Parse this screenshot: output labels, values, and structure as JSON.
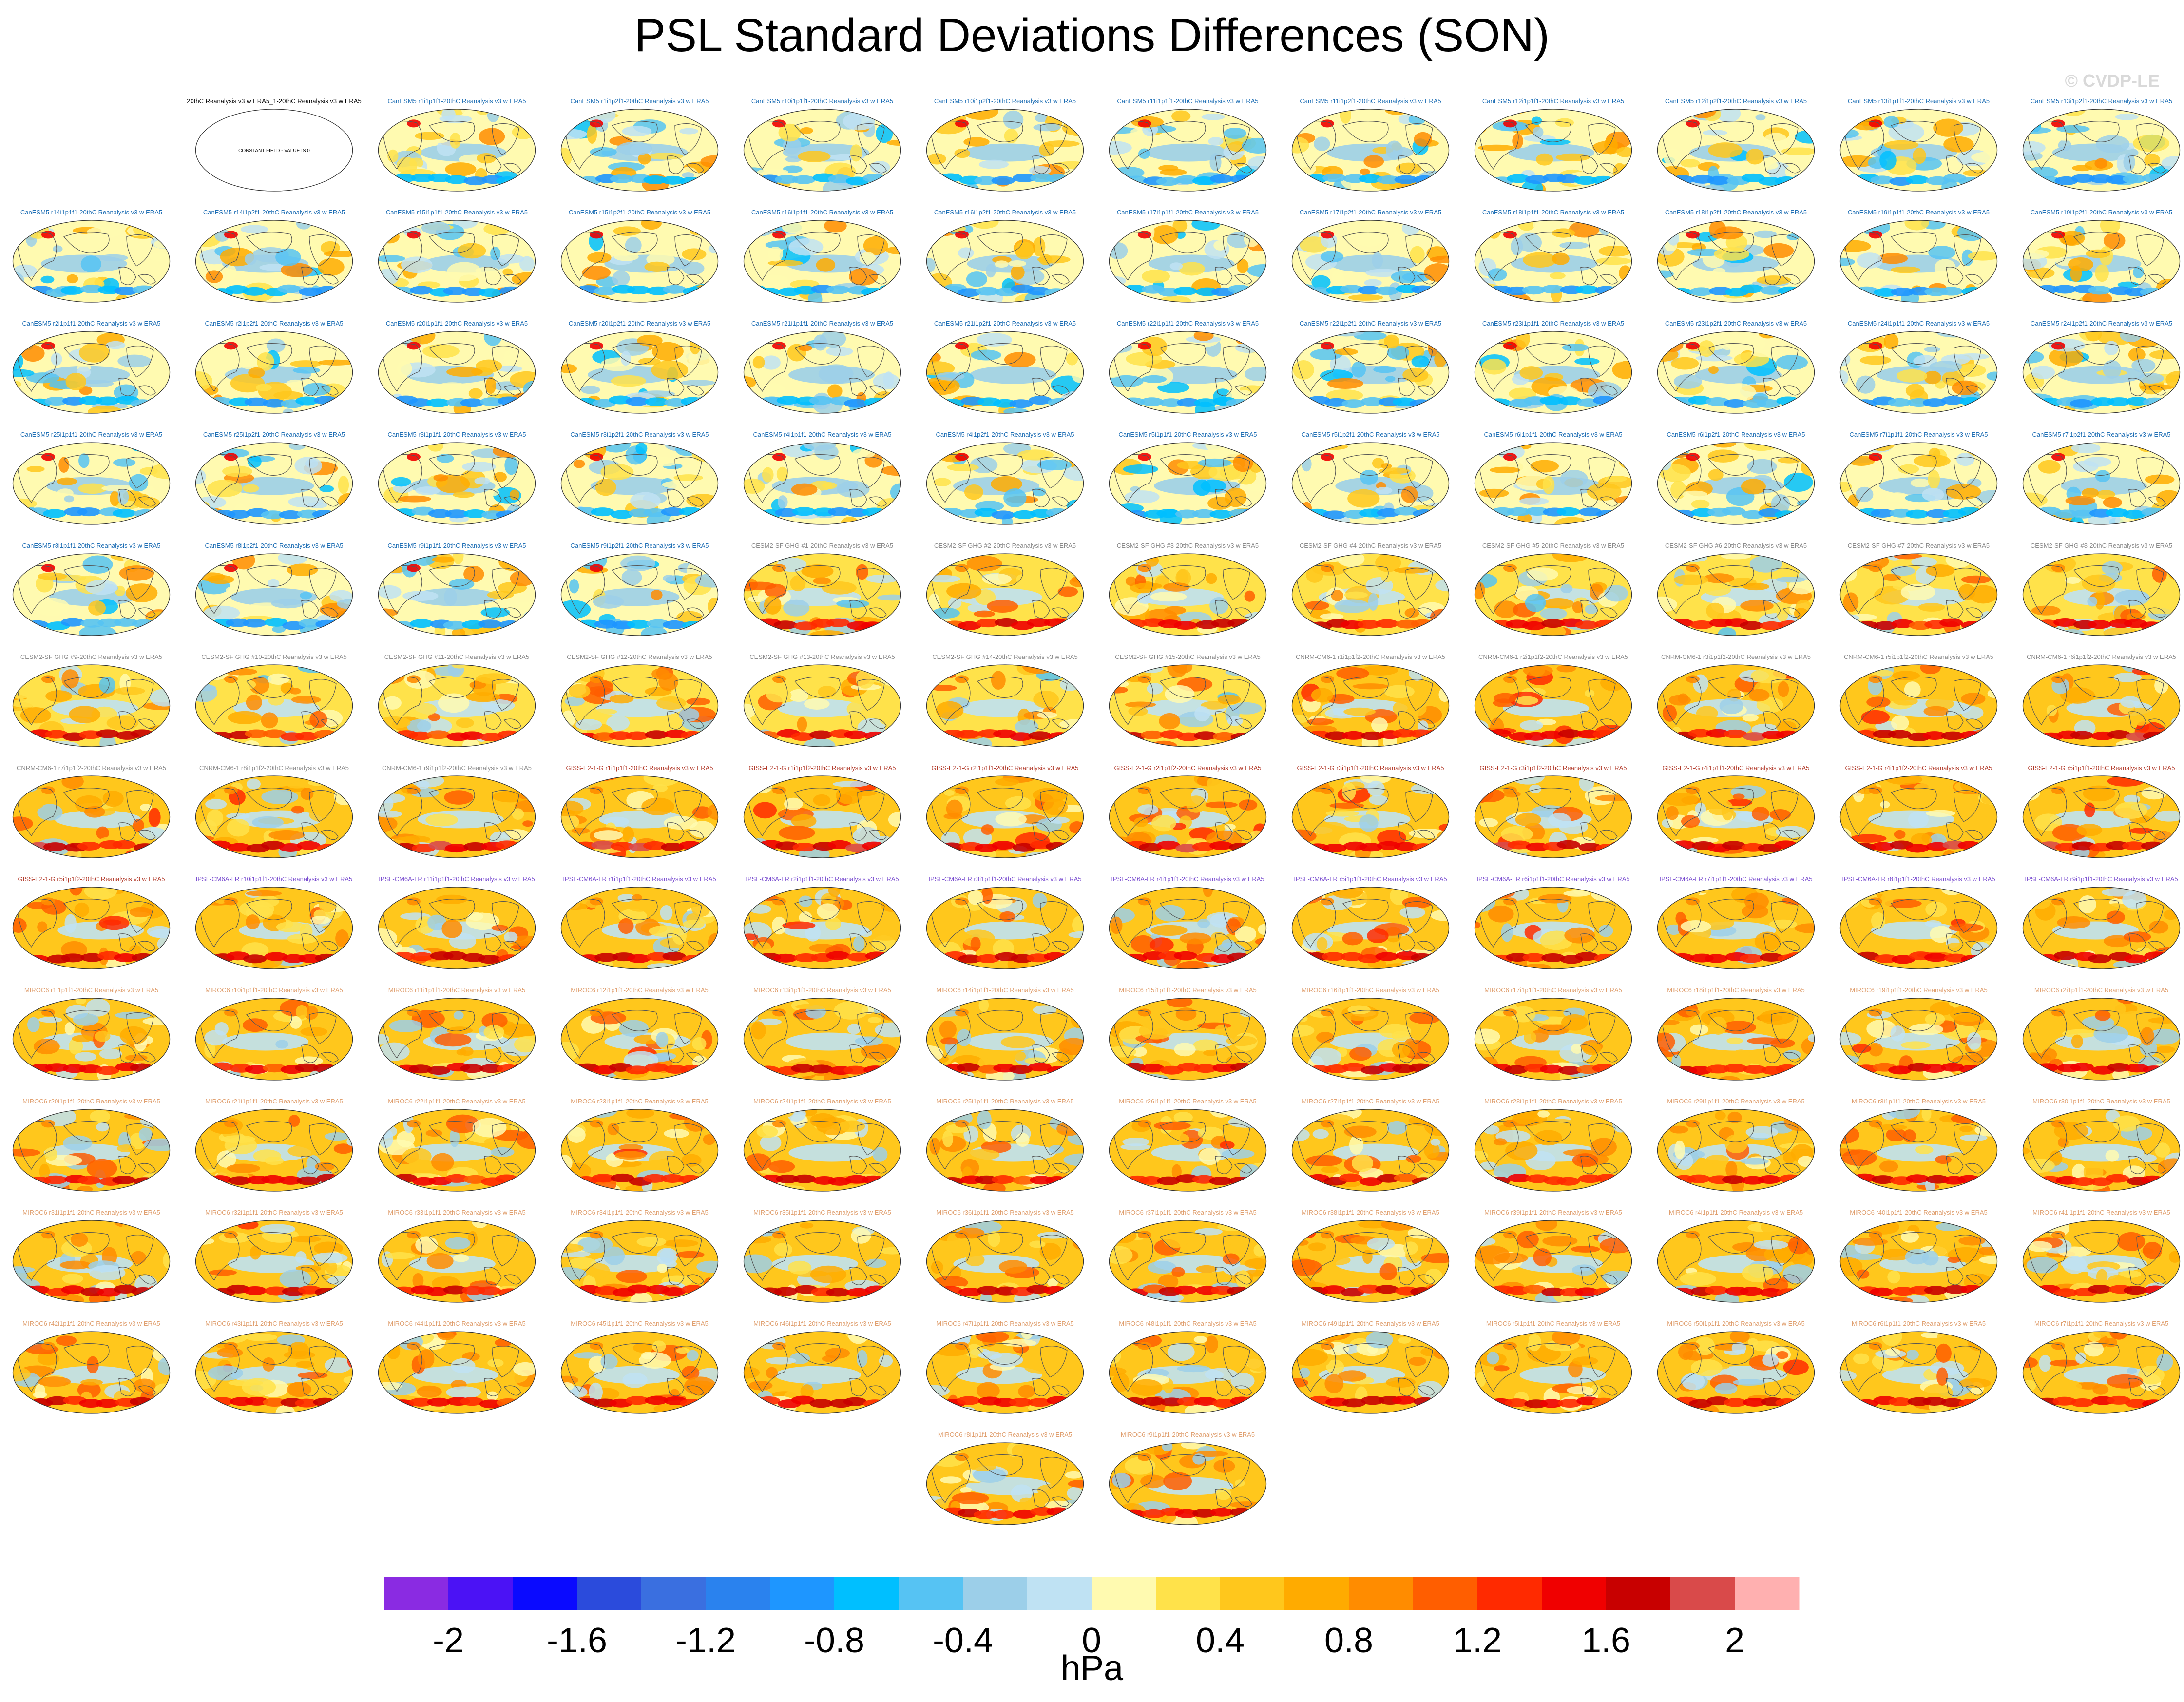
{
  "title": "PSL Standard Deviations Differences (SON)",
  "watermark": "© CVDP-LE",
  "colors": {
    "canesm": "#1f6fb5",
    "cesm": "#8a8a8a",
    "cnrm": "#8a8a8a",
    "giss": "#b23a2a",
    "ipsl": "#7b4fd0",
    "miroc": "#e0a070",
    "ocean_base": "#f5f0c0",
    "land_line": "#555555"
  },
  "chart_data": {
    "type": "heatmap",
    "title": "PSL Standard Deviations Differences (SON)",
    "units": "hPa",
    "colorbar": {
      "levels": [
        -2.2,
        -2.0,
        -1.8,
        -1.6,
        -1.4,
        -1.2,
        -1.0,
        -0.8,
        -0.6,
        -0.4,
        -0.2,
        0,
        0.2,
        0.4,
        0.6,
        0.8,
        1.0,
        1.2,
        1.4,
        1.6,
        1.8,
        2.0,
        2.2
      ],
      "colors": [
        "#8a2be2",
        "#4b12f5",
        "#0a0aff",
        "#2b4bdc",
        "#3a6fe0",
        "#2a82ee",
        "#1e96ff",
        "#00bfff",
        "#56c3f3",
        "#9ccfe9",
        "#bfe2f3",
        "#fffab0",
        "#ffe24a",
        "#ffc71c",
        "#ffab00",
        "#ff8c00",
        "#ff5e00",
        "#ff2a00",
        "#f00000",
        "#c80000",
        "#d94a4a",
        "#ffb0b0"
      ],
      "tick_values": [
        -2,
        -1.6,
        -1.2,
        -0.8,
        -0.4,
        0,
        0.4,
        0.8,
        1.2,
        1.6,
        2
      ],
      "tick_labels": [
        "-2",
        "-1.6",
        "-1.2",
        "-0.8",
        "-0.4",
        "0",
        "0.4",
        "0.8",
        "1.2",
        "1.6",
        "2"
      ]
    },
    "panels": [
      {
        "label": "20thC Reanalysis v3 w ERA5_1-20thC Reanalysis v3 w ERA5",
        "group": "obs",
        "note": "CONSTANT FIELD - VALUE IS 0"
      },
      {
        "label": "CanESM5 r1i1p1f1-20thC Reanalysis v3 w ERA5",
        "group": "canesm"
      },
      {
        "label": "CanESM5 r1i1p2f1-20thC Reanalysis v3 w ERA5",
        "group": "canesm"
      },
      {
        "label": "CanESM5 r10i1p1f1-20thC Reanalysis v3 w ERA5",
        "group": "canesm"
      },
      {
        "label": "CanESM5 r10i1p2f1-20thC Reanalysis v3 w ERA5",
        "group": "canesm"
      },
      {
        "label": "CanESM5 r11i1p1f1-20thC Reanalysis v3 w ERA5",
        "group": "canesm"
      },
      {
        "label": "CanESM5 r11i1p2f1-20thC Reanalysis v3 w ERA5",
        "group": "canesm"
      },
      {
        "label": "CanESM5 r12i1p1f1-20thC Reanalysis v3 w ERA5",
        "group": "canesm"
      },
      {
        "label": "CanESM5 r12i1p2f1-20thC Reanalysis v3 w ERA5",
        "group": "canesm"
      },
      {
        "label": "CanESM5 r13i1p1f1-20thC Reanalysis v3 w ERA5",
        "group": "canesm"
      },
      {
        "label": "CanESM5 r13i1p2f1-20thC Reanalysis v3 w ERA5",
        "group": "canesm"
      },
      {
        "label": "CanESM5 r14i1p1f1-20thC Reanalysis v3 w ERA5",
        "group": "canesm"
      },
      {
        "label": "CanESM5 r14i1p2f1-20thC Reanalysis v3 w ERA5",
        "group": "canesm"
      },
      {
        "label": "CanESM5 r15i1p1f1-20thC Reanalysis v3 w ERA5",
        "group": "canesm"
      },
      {
        "label": "CanESM5 r15i1p2f1-20thC Reanalysis v3 w ERA5",
        "group": "canesm"
      },
      {
        "label": "CanESM5 r16i1p1f1-20thC Reanalysis v3 w ERA5",
        "group": "canesm"
      },
      {
        "label": "CanESM5 r16i1p2f1-20thC Reanalysis v3 w ERA5",
        "group": "canesm"
      },
      {
        "label": "CanESM5 r17i1p1f1-20thC Reanalysis v3 w ERA5",
        "group": "canesm"
      },
      {
        "label": "CanESM5 r17i1p2f1-20thC Reanalysis v3 w ERA5",
        "group": "canesm"
      },
      {
        "label": "CanESM5 r18i1p1f1-20thC Reanalysis v3 w ERA5",
        "group": "canesm"
      },
      {
        "label": "CanESM5 r18i1p2f1-20thC Reanalysis v3 w ERA5",
        "group": "canesm"
      },
      {
        "label": "CanESM5 r19i1p1f1-20thC Reanalysis v3 w ERA5",
        "group": "canesm"
      },
      {
        "label": "CanESM5 r19i1p2f1-20thC Reanalysis v3 w ERA5",
        "group": "canesm"
      },
      {
        "label": "CanESM5 r2i1p1f1-20thC Reanalysis v3 w ERA5",
        "group": "canesm"
      },
      {
        "label": "CanESM5 r2i1p2f1-20thC Reanalysis v3 w ERA5",
        "group": "canesm"
      },
      {
        "label": "CanESM5 r20i1p1f1-20thC Reanalysis v3 w ERA5",
        "group": "canesm"
      },
      {
        "label": "CanESM5 r20i1p2f1-20thC Reanalysis v3 w ERA5",
        "group": "canesm"
      },
      {
        "label": "CanESM5 r21i1p1f1-20thC Reanalysis v3 w ERA5",
        "group": "canesm"
      },
      {
        "label": "CanESM5 r21i1p2f1-20thC Reanalysis v3 w ERA5",
        "group": "canesm"
      },
      {
        "label": "CanESM5 r22i1p1f1-20thC Reanalysis v3 w ERA5",
        "group": "canesm"
      },
      {
        "label": "CanESM5 r22i1p2f1-20thC Reanalysis v3 w ERA5",
        "group": "canesm"
      },
      {
        "label": "CanESM5 r23i1p1f1-20thC Reanalysis v3 w ERA5",
        "group": "canesm"
      },
      {
        "label": "CanESM5 r23i1p2f1-20thC Reanalysis v3 w ERA5",
        "group": "canesm"
      },
      {
        "label": "CanESM5 r24i1p1f1-20thC Reanalysis v3 w ERA5",
        "group": "canesm"
      },
      {
        "label": "CanESM5 r24i1p2f1-20thC Reanalysis v3 w ERA5",
        "group": "canesm"
      },
      {
        "label": "CanESM5 r25i1p1f1-20thC Reanalysis v3 w ERA5",
        "group": "canesm"
      },
      {
        "label": "CanESM5 r25i1p2f1-20thC Reanalysis v3 w ERA5",
        "group": "canesm"
      },
      {
        "label": "CanESM5 r3i1p1f1-20thC Reanalysis v3 w ERA5",
        "group": "canesm"
      },
      {
        "label": "CanESM5 r3i1p2f1-20thC Reanalysis v3 w ERA5",
        "group": "canesm"
      },
      {
        "label": "CanESM5 r4i1p1f1-20thC Reanalysis v3 w ERA5",
        "group": "canesm"
      },
      {
        "label": "CanESM5 r4i1p2f1-20thC Reanalysis v3 w ERA5",
        "group": "canesm"
      },
      {
        "label": "CanESM5 r5i1p1f1-20thC Reanalysis v3 w ERA5",
        "group": "canesm"
      },
      {
        "label": "CanESM5 r5i1p2f1-20thC Reanalysis v3 w ERA5",
        "group": "canesm"
      },
      {
        "label": "CanESM5 r6i1p1f1-20thC Reanalysis v3 w ERA5",
        "group": "canesm"
      },
      {
        "label": "CanESM5 r6i1p2f1-20thC Reanalysis v3 w ERA5",
        "group": "canesm"
      },
      {
        "label": "CanESM5 r7i1p1f1-20thC Reanalysis v3 w ERA5",
        "group": "canesm"
      },
      {
        "label": "CanESM5 r7i1p2f1-20thC Reanalysis v3 w ERA5",
        "group": "canesm"
      },
      {
        "label": "CanESM5 r8i1p1f1-20thC Reanalysis v3 w ERA5",
        "group": "canesm"
      },
      {
        "label": "CanESM5 r8i1p2f1-20thC Reanalysis v3 w ERA5",
        "group": "canesm"
      },
      {
        "label": "CanESM5 r9i1p1f1-20thC Reanalysis v3 w ERA5",
        "group": "canesm"
      },
      {
        "label": "CanESM5 r9i1p2f1-20thC Reanalysis v3 w ERA5",
        "group": "canesm"
      },
      {
        "label": "CESM2-SF GHG #1-20thC Reanalysis v3 w ERA5",
        "group": "cesm"
      },
      {
        "label": "CESM2-SF GHG #2-20thC Reanalysis v3 w ERA5",
        "group": "cesm"
      },
      {
        "label": "CESM2-SF GHG #3-20thC Reanalysis v3 w ERA5",
        "group": "cesm"
      },
      {
        "label": "CESM2-SF GHG #4-20thC Reanalysis v3 w ERA5",
        "group": "cesm"
      },
      {
        "label": "CESM2-SF GHG #5-20thC Reanalysis v3 w ERA5",
        "group": "cesm"
      },
      {
        "label": "CESM2-SF GHG #6-20thC Reanalysis v3 w ERA5",
        "group": "cesm"
      },
      {
        "label": "CESM2-SF GHG #7-20thC Reanalysis v3 w ERA5",
        "group": "cesm"
      },
      {
        "label": "CESM2-SF GHG #8-20thC Reanalysis v3 w ERA5",
        "group": "cesm"
      },
      {
        "label": "CESM2-SF GHG #9-20thC Reanalysis v3 w ERA5",
        "group": "cesm"
      },
      {
        "label": "CESM2-SF GHG #10-20thC Reanalysis v3 w ERA5",
        "group": "cesm"
      },
      {
        "label": "CESM2-SF GHG #11-20thC Reanalysis v3 w ERA5",
        "group": "cesm"
      },
      {
        "label": "CESM2-SF GHG #12-20thC Reanalysis v3 w ERA5",
        "group": "cesm"
      },
      {
        "label": "CESM2-SF GHG #13-20thC Reanalysis v3 w ERA5",
        "group": "cesm"
      },
      {
        "label": "CESM2-SF GHG #14-20thC Reanalysis v3 w ERA5",
        "group": "cesm"
      },
      {
        "label": "CESM2-SF GHG #15-20thC Reanalysis v3 w ERA5",
        "group": "cesm"
      },
      {
        "label": "CNRM-CM6-1 r1i1p1f2-20thC Reanalysis v3 w ERA5",
        "group": "cnrm"
      },
      {
        "label": "CNRM-CM6-1 r2i1p1f2-20thC Reanalysis v3 w ERA5",
        "group": "cnrm"
      },
      {
        "label": "CNRM-CM6-1 r3i1p1f2-20thC Reanalysis v3 w ERA5",
        "group": "cnrm"
      },
      {
        "label": "CNRM-CM6-1 r5i1p1f2-20thC Reanalysis v3 w ERA5",
        "group": "cnrm"
      },
      {
        "label": "CNRM-CM6-1 r6i1p1f2-20thC Reanalysis v3 w ERA5",
        "group": "cnrm"
      },
      {
        "label": "CNRM-CM6-1 r7i1p1f2-20thC Reanalysis v3 w ERA5",
        "group": "cnrm"
      },
      {
        "label": "CNRM-CM6-1 r8i1p1f2-20thC Reanalysis v3 w ERA5",
        "group": "cnrm"
      },
      {
        "label": "CNRM-CM6-1 r9i1p1f2-20thC Reanalysis v3 w ERA5",
        "group": "cnrm"
      },
      {
        "label": "GISS-E2-1-G r1i1p1f1-20thC Reanalysis v3 w ERA5",
        "group": "giss"
      },
      {
        "label": "GISS-E2-1-G r1i1p1f2-20thC Reanalysis v3 w ERA5",
        "group": "giss"
      },
      {
        "label": "GISS-E2-1-G r2i1p1f1-20thC Reanalysis v3 w ERA5",
        "group": "giss"
      },
      {
        "label": "GISS-E2-1-G r2i1p1f2-20thC Reanalysis v3 w ERA5",
        "group": "giss"
      },
      {
        "label": "GISS-E2-1-G r3i1p1f1-20thC Reanalysis v3 w ERA5",
        "group": "giss"
      },
      {
        "label": "GISS-E2-1-G r3i1p1f2-20thC Reanalysis v3 w ERA5",
        "group": "giss"
      },
      {
        "label": "GISS-E2-1-G r4i1p1f1-20thC Reanalysis v3 w ERA5",
        "group": "giss"
      },
      {
        "label": "GISS-E2-1-G r4i1p1f2-20thC Reanalysis v3 w ERA5",
        "group": "giss"
      },
      {
        "label": "GISS-E2-1-G r5i1p1f1-20thC Reanalysis v3 w ERA5",
        "group": "giss"
      },
      {
        "label": "GISS-E2-1-G r5i1p1f2-20thC Reanalysis v3 w ERA5",
        "group": "giss"
      },
      {
        "label": "IPSL-CM6A-LR r10i1p1f1-20thC Reanalysis v3 w ERA5",
        "group": "ipsl"
      },
      {
        "label": "IPSL-CM6A-LR r11i1p1f1-20thC Reanalysis v3 w ERA5",
        "group": "ipsl"
      },
      {
        "label": "IPSL-CM6A-LR r1i1p1f1-20thC Reanalysis v3 w ERA5",
        "group": "ipsl"
      },
      {
        "label": "IPSL-CM6A-LR r2i1p1f1-20thC Reanalysis v3 w ERA5",
        "group": "ipsl"
      },
      {
        "label": "IPSL-CM6A-LR r3i1p1f1-20thC Reanalysis v3 w ERA5",
        "group": "ipsl"
      },
      {
        "label": "IPSL-CM6A-LR r4i1p1f1-20thC Reanalysis v3 w ERA5",
        "group": "ipsl"
      },
      {
        "label": "IPSL-CM6A-LR r5i1p1f1-20thC Reanalysis v3 w ERA5",
        "group": "ipsl"
      },
      {
        "label": "IPSL-CM6A-LR r6i1p1f1-20thC Reanalysis v3 w ERA5",
        "group": "ipsl"
      },
      {
        "label": "IPSL-CM6A-LR r7i1p1f1-20thC Reanalysis v3 w ERA5",
        "group": "ipsl"
      },
      {
        "label": "IPSL-CM6A-LR r8i1p1f1-20thC Reanalysis v3 w ERA5",
        "group": "ipsl"
      },
      {
        "label": "IPSL-CM6A-LR r9i1p1f1-20thC Reanalysis v3 w ERA5",
        "group": "ipsl"
      },
      {
        "label": "MIROC6 r1i1p1f1-20thC Reanalysis v3 w ERA5",
        "group": "miroc"
      },
      {
        "label": "MIROC6 r10i1p1f1-20thC Reanalysis v3 w ERA5",
        "group": "miroc"
      },
      {
        "label": "MIROC6 r11i1p1f1-20thC Reanalysis v3 w ERA5",
        "group": "miroc"
      },
      {
        "label": "MIROC6 r12i1p1f1-20thC Reanalysis v3 w ERA5",
        "group": "miroc"
      },
      {
        "label": "MIROC6 r13i1p1f1-20thC Reanalysis v3 w ERA5",
        "group": "miroc"
      },
      {
        "label": "MIROC6 r14i1p1f1-20thC Reanalysis v3 w ERA5",
        "group": "miroc"
      },
      {
        "label": "MIROC6 r15i1p1f1-20thC Reanalysis v3 w ERA5",
        "group": "miroc"
      },
      {
        "label": "MIROC6 r16i1p1f1-20thC Reanalysis v3 w ERA5",
        "group": "miroc"
      },
      {
        "label": "MIROC6 r17i1p1f1-20thC Reanalysis v3 w ERA5",
        "group": "miroc"
      },
      {
        "label": "MIROC6 r18i1p1f1-20thC Reanalysis v3 w ERA5",
        "group": "miroc"
      },
      {
        "label": "MIROC6 r19i1p1f1-20thC Reanalysis v3 w ERA5",
        "group": "miroc"
      },
      {
        "label": "MIROC6 r2i1p1f1-20thC Reanalysis v3 w ERA5",
        "group": "miroc"
      },
      {
        "label": "MIROC6 r20i1p1f1-20thC Reanalysis v3 w ERA5",
        "group": "miroc"
      },
      {
        "label": "MIROC6 r21i1p1f1-20thC Reanalysis v3 w ERA5",
        "group": "miroc"
      },
      {
        "label": "MIROC6 r22i1p1f1-20thC Reanalysis v3 w ERA5",
        "group": "miroc"
      },
      {
        "label": "MIROC6 r23i1p1f1-20thC Reanalysis v3 w ERA5",
        "group": "miroc"
      },
      {
        "label": "MIROC6 r24i1p1f1-20thC Reanalysis v3 w ERA5",
        "group": "miroc"
      },
      {
        "label": "MIROC6 r25i1p1f1-20thC Reanalysis v3 w ERA5",
        "group": "miroc"
      },
      {
        "label": "MIROC6 r26i1p1f1-20thC Reanalysis v3 w ERA5",
        "group": "miroc"
      },
      {
        "label": "MIROC6 r27i1p1f1-20thC Reanalysis v3 w ERA5",
        "group": "miroc"
      },
      {
        "label": "MIROC6 r28i1p1f1-20thC Reanalysis v3 w ERA5",
        "group": "miroc"
      },
      {
        "label": "MIROC6 r29i1p1f1-20thC Reanalysis v3 w ERA5",
        "group": "miroc"
      },
      {
        "label": "MIROC6 r3i1p1f1-20thC Reanalysis v3 w ERA5",
        "group": "miroc"
      },
      {
        "label": "MIROC6 r30i1p1f1-20thC Reanalysis v3 w ERA5",
        "group": "miroc"
      },
      {
        "label": "MIROC6 r31i1p1f1-20thC Reanalysis v3 w ERA5",
        "group": "miroc"
      },
      {
        "label": "MIROC6 r32i1p1f1-20thC Reanalysis v3 w ERA5",
        "group": "miroc"
      },
      {
        "label": "MIROC6 r33i1p1f1-20thC Reanalysis v3 w ERA5",
        "group": "miroc"
      },
      {
        "label": "MIROC6 r34i1p1f1-20thC Reanalysis v3 w ERA5",
        "group": "miroc"
      },
      {
        "label": "MIROC6 r35i1p1f1-20thC Reanalysis v3 w ERA5",
        "group": "miroc"
      },
      {
        "label": "MIROC6 r36i1p1f1-20thC Reanalysis v3 w ERA5",
        "group": "miroc"
      },
      {
        "label": "MIROC6 r37i1p1f1-20thC Reanalysis v3 w ERA5",
        "group": "miroc"
      },
      {
        "label": "MIROC6 r38i1p1f1-20thC Reanalysis v3 w ERA5",
        "group": "miroc"
      },
      {
        "label": "MIROC6 r39i1p1f1-20thC Reanalysis v3 w ERA5",
        "group": "miroc"
      },
      {
        "label": "MIROC6 r4i1p1f1-20thC Reanalysis v3 w ERA5",
        "group": "miroc"
      },
      {
        "label": "MIROC6 r40i1p1f1-20thC Reanalysis v3 w ERA5",
        "group": "miroc"
      },
      {
        "label": "MIROC6 r41i1p1f1-20thC Reanalysis v3 w ERA5",
        "group": "miroc"
      },
      {
        "label": "MIROC6 r42i1p1f1-20thC Reanalysis v3 w ERA5",
        "group": "miroc"
      },
      {
        "label": "MIROC6 r43i1p1f1-20thC Reanalysis v3 w ERA5",
        "group": "miroc"
      },
      {
        "label": "MIROC6 r44i1p1f1-20thC Reanalysis v3 w ERA5",
        "group": "miroc"
      },
      {
        "label": "MIROC6 r45i1p1f1-20thC Reanalysis v3 w ERA5",
        "group": "miroc"
      },
      {
        "label": "MIROC6 r46i1p1f1-20thC Reanalysis v3 w ERA5",
        "group": "miroc"
      },
      {
        "label": "MIROC6 r47i1p1f1-20thC Reanalysis v3 w ERA5",
        "group": "miroc"
      },
      {
        "label": "MIROC6 r48i1p1f1-20thC Reanalysis v3 w ERA5",
        "group": "miroc"
      },
      {
        "label": "MIROC6 r49i1p1f1-20thC Reanalysis v3 w ERA5",
        "group": "miroc"
      },
      {
        "label": "MIROC6 r5i1p1f1-20thC Reanalysis v3 w ERA5",
        "group": "miroc"
      },
      {
        "label": "MIROC6 r50i1p1f1-20thC Reanalysis v3 w ERA5",
        "group": "miroc"
      },
      {
        "label": "MIROC6 r6i1p1f1-20thC Reanalysis v3 w ERA5",
        "group": "miroc"
      },
      {
        "label": "MIROC6 r7i1p1f1-20thC Reanalysis v3 w ERA5",
        "group": "miroc"
      },
      {
        "label": "MIROC6 r8i1p1f1-20thC Reanalysis v3 w ERA5",
        "group": "miroc"
      },
      {
        "label": "MIROC6 r9i1p1f1-20thC Reanalysis v3 w ERA5",
        "group": "miroc"
      }
    ]
  }
}
